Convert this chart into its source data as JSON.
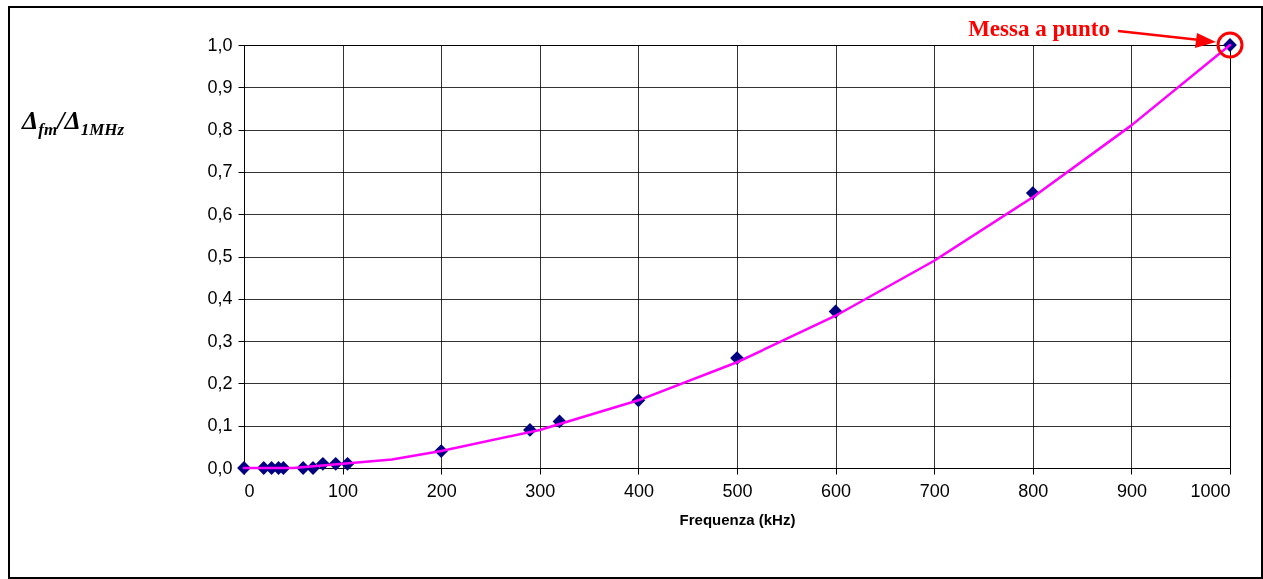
{
  "chart_data": {
    "type": "scatter",
    "xlabel": "Frequenza (kHz)",
    "ylabel": "Δ$_{fm}$/Δ$_{1MHz}$",
    "x": [
      0,
      20,
      28,
      35,
      40,
      60,
      70,
      80,
      93,
      105,
      200,
      290,
      320,
      400,
      500,
      600,
      800,
      1000
    ],
    "series": [
      {
        "color": "#000080",
        "marker": "diamond",
        "values": [
          0,
          0,
          0,
          0,
          0,
          0,
          0,
          0.01,
          0.01,
          0.01,
          0.04,
          0.09,
          0.11,
          0.16,
          0.26,
          0.37,
          0.65,
          1.0
        ]
      },
      {
        "type": "line",
        "color": "#ff00ff",
        "marker": "none",
        "x": [
          0,
          50,
          100,
          150,
          200,
          300,
          400,
          500,
          600,
          700,
          800,
          900,
          1000
        ],
        "values": [
          0,
          0,
          0.01,
          0.02,
          0.04,
          0.09,
          0.16,
          0.25,
          0.36,
          0.49,
          0.64,
          0.81,
          1.0
        ]
      }
    ],
    "xlim": [
      0,
      1000
    ],
    "xticks": [
      0,
      100,
      200,
      300,
      400,
      500,
      600,
      700,
      800,
      900,
      1000
    ],
    "ylim": [
      0,
      1
    ],
    "yticks": [
      {
        "value": 0,
        "label": "0,0"
      },
      {
        "value": 0.1,
        "label": "0,1"
      },
      {
        "value": 0.2,
        "label": "0,2"
      },
      {
        "value": 0.3,
        "label": "0,3"
      },
      {
        "value": 0.4,
        "label": "0,4"
      },
      {
        "value": 0.5,
        "label": "0,5"
      },
      {
        "value": 0.6,
        "label": "0,6"
      },
      {
        "value": 0.7,
        "label": "0,7"
      },
      {
        "value": 0.8,
        "label": "0,8"
      },
      {
        "value": 0.9,
        "label": "0,9"
      },
      {
        "value": 1,
        "label": "1,0"
      }
    ],
    "grid": true,
    "annotations": [
      "Messa a punto"
    ]
  }
}
